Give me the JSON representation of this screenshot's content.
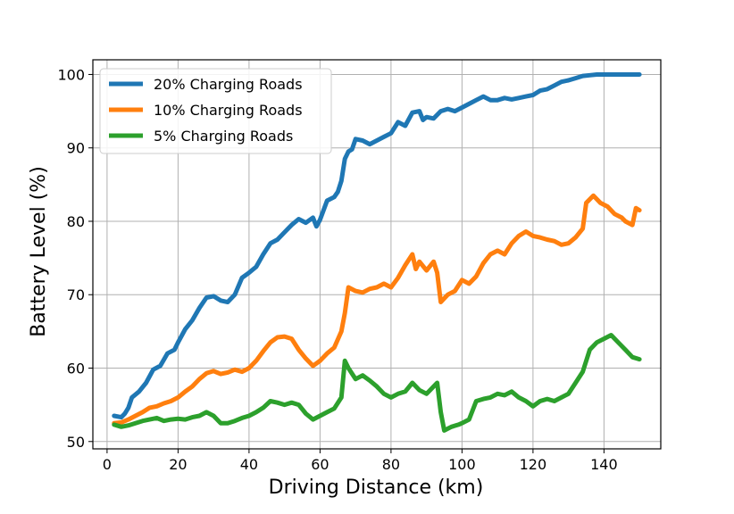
{
  "chart_data": {
    "type": "line",
    "title": "",
    "xlabel": "Driving Distance (km)",
    "ylabel": "Battery Level (%)",
    "xlim": [
      -4,
      156
    ],
    "ylim": [
      49,
      102
    ],
    "xticks": [
      0,
      20,
      40,
      60,
      80,
      100,
      120,
      140
    ],
    "yticks": [
      50,
      60,
      70,
      80,
      90,
      100
    ],
    "grid": true,
    "legend_position": "top-left",
    "series": [
      {
        "name": "20% Charging Roads",
        "color": "#1f77b4",
        "points": [
          [
            2,
            53.5
          ],
          [
            4,
            53.3
          ],
          [
            5,
            53.8
          ],
          [
            6,
            54.6
          ],
          [
            7,
            56.0
          ],
          [
            9,
            56.8
          ],
          [
            11,
            58.0
          ],
          [
            13,
            59.8
          ],
          [
            15,
            60.3
          ],
          [
            17,
            62.0
          ],
          [
            19,
            62.5
          ],
          [
            20,
            63.5
          ],
          [
            22,
            65.3
          ],
          [
            24,
            66.5
          ],
          [
            26,
            68.2
          ],
          [
            28,
            69.6
          ],
          [
            30,
            69.8
          ],
          [
            32,
            69.2
          ],
          [
            34,
            69.0
          ],
          [
            36,
            70.0
          ],
          [
            38,
            72.3
          ],
          [
            40,
            73.0
          ],
          [
            42,
            73.8
          ],
          [
            44,
            75.5
          ],
          [
            46,
            77.0
          ],
          [
            48,
            77.5
          ],
          [
            50,
            78.5
          ],
          [
            52,
            79.5
          ],
          [
            54,
            80.3
          ],
          [
            56,
            79.8
          ],
          [
            58,
            80.5
          ],
          [
            59,
            79.3
          ],
          [
            60,
            80.2
          ],
          [
            62,
            82.8
          ],
          [
            64,
            83.3
          ],
          [
            65,
            84.0
          ],
          [
            66,
            85.5
          ],
          [
            67,
            88.5
          ],
          [
            68,
            89.5
          ],
          [
            69,
            89.8
          ],
          [
            70,
            91.2
          ],
          [
            72,
            91.0
          ],
          [
            74,
            90.5
          ],
          [
            76,
            91.0
          ],
          [
            78,
            91.5
          ],
          [
            80,
            92.0
          ],
          [
            82,
            93.5
          ],
          [
            84,
            93.0
          ],
          [
            86,
            94.8
          ],
          [
            88,
            95.0
          ],
          [
            89,
            93.8
          ],
          [
            90,
            94.2
          ],
          [
            92,
            94.0
          ],
          [
            94,
            95.0
          ],
          [
            96,
            95.3
          ],
          [
            98,
            95.0
          ],
          [
            100,
            95.5
          ],
          [
            102,
            96.0
          ],
          [
            104,
            96.5
          ],
          [
            106,
            97.0
          ],
          [
            108,
            96.5
          ],
          [
            110,
            96.5
          ],
          [
            112,
            96.8
          ],
          [
            114,
            96.6
          ],
          [
            116,
            96.8
          ],
          [
            118,
            97.0
          ],
          [
            120,
            97.2
          ],
          [
            122,
            97.8
          ],
          [
            124,
            98.0
          ],
          [
            126,
            98.5
          ],
          [
            128,
            99.0
          ],
          [
            130,
            99.2
          ],
          [
            132,
            99.5
          ],
          [
            134,
            99.8
          ],
          [
            136,
            99.9
          ],
          [
            138,
            100.0
          ],
          [
            142,
            100.0
          ],
          [
            146,
            100.0
          ],
          [
            150,
            100.0
          ]
        ]
      },
      {
        "name": "10% Charging Roads",
        "color": "#ff7f0e",
        "points": [
          [
            2,
            52.5
          ],
          [
            4,
            52.6
          ],
          [
            6,
            53.0
          ],
          [
            8,
            53.5
          ],
          [
            10,
            54.0
          ],
          [
            12,
            54.6
          ],
          [
            14,
            54.8
          ],
          [
            16,
            55.2
          ],
          [
            18,
            55.5
          ],
          [
            20,
            56.0
          ],
          [
            22,
            56.8
          ],
          [
            24,
            57.5
          ],
          [
            26,
            58.5
          ],
          [
            28,
            59.3
          ],
          [
            30,
            59.6
          ],
          [
            32,
            59.2
          ],
          [
            34,
            59.4
          ],
          [
            36,
            59.8
          ],
          [
            38,
            59.5
          ],
          [
            40,
            60.0
          ],
          [
            42,
            61.0
          ],
          [
            44,
            62.3
          ],
          [
            46,
            63.5
          ],
          [
            48,
            64.2
          ],
          [
            50,
            64.3
          ],
          [
            52,
            64.0
          ],
          [
            54,
            62.5
          ],
          [
            56,
            61.3
          ],
          [
            58,
            60.3
          ],
          [
            60,
            61.0
          ],
          [
            62,
            62.0
          ],
          [
            64,
            62.8
          ],
          [
            66,
            65.0
          ],
          [
            67,
            67.5
          ],
          [
            68,
            71.0
          ],
          [
            70,
            70.5
          ],
          [
            72,
            70.3
          ],
          [
            74,
            70.8
          ],
          [
            76,
            71.0
          ],
          [
            78,
            71.5
          ],
          [
            80,
            71.0
          ],
          [
            82,
            72.3
          ],
          [
            84,
            74.0
          ],
          [
            86,
            75.5
          ],
          [
            87,
            73.5
          ],
          [
            88,
            74.5
          ],
          [
            90,
            73.3
          ],
          [
            92,
            74.5
          ],
          [
            93,
            73.0
          ],
          [
            94,
            69.0
          ],
          [
            96,
            70.0
          ],
          [
            98,
            70.5
          ],
          [
            100,
            72.0
          ],
          [
            102,
            71.5
          ],
          [
            104,
            72.5
          ],
          [
            106,
            74.3
          ],
          [
            108,
            75.5
          ],
          [
            110,
            76.0
          ],
          [
            112,
            75.5
          ],
          [
            114,
            77.0
          ],
          [
            116,
            78.0
          ],
          [
            118,
            78.6
          ],
          [
            120,
            78.0
          ],
          [
            122,
            77.8
          ],
          [
            124,
            77.5
          ],
          [
            126,
            77.3
          ],
          [
            128,
            76.8
          ],
          [
            130,
            77.0
          ],
          [
            132,
            77.8
          ],
          [
            134,
            79.0
          ],
          [
            135,
            82.5
          ],
          [
            137,
            83.5
          ],
          [
            139,
            82.5
          ],
          [
            141,
            82.0
          ],
          [
            143,
            81.0
          ],
          [
            145,
            80.5
          ],
          [
            146,
            80.0
          ],
          [
            148,
            79.5
          ],
          [
            149,
            81.8
          ],
          [
            150,
            81.5
          ]
        ]
      },
      {
        "name": "5% Charging Roads",
        "color": "#2ca02c",
        "points": [
          [
            2,
            52.3
          ],
          [
            4,
            52.0
          ],
          [
            6,
            52.2
          ],
          [
            8,
            52.5
          ],
          [
            10,
            52.8
          ],
          [
            12,
            53.0
          ],
          [
            14,
            53.2
          ],
          [
            16,
            52.8
          ],
          [
            18,
            53.0
          ],
          [
            20,
            53.1
          ],
          [
            22,
            53.0
          ],
          [
            24,
            53.3
          ],
          [
            26,
            53.5
          ],
          [
            28,
            54.0
          ],
          [
            30,
            53.5
          ],
          [
            32,
            52.5
          ],
          [
            34,
            52.5
          ],
          [
            36,
            52.8
          ],
          [
            38,
            53.2
          ],
          [
            40,
            53.5
          ],
          [
            42,
            54.0
          ],
          [
            44,
            54.6
          ],
          [
            46,
            55.5
          ],
          [
            48,
            55.3
          ],
          [
            50,
            55.0
          ],
          [
            52,
            55.3
          ],
          [
            54,
            55.0
          ],
          [
            56,
            53.8
          ],
          [
            58,
            53.0
          ],
          [
            60,
            53.5
          ],
          [
            62,
            54.0
          ],
          [
            64,
            54.5
          ],
          [
            66,
            56.0
          ],
          [
            67,
            61.0
          ],
          [
            68,
            60.0
          ],
          [
            70,
            58.5
          ],
          [
            72,
            59.0
          ],
          [
            74,
            58.3
          ],
          [
            76,
            57.5
          ],
          [
            78,
            56.5
          ],
          [
            80,
            56.0
          ],
          [
            82,
            56.5
          ],
          [
            84,
            56.8
          ],
          [
            86,
            58.0
          ],
          [
            88,
            57.0
          ],
          [
            90,
            56.5
          ],
          [
            92,
            57.5
          ],
          [
            93,
            58.0
          ],
          [
            94,
            54.0
          ],
          [
            95,
            51.5
          ],
          [
            97,
            52.0
          ],
          [
            99,
            52.3
          ],
          [
            100,
            52.5
          ],
          [
            102,
            53.0
          ],
          [
            104,
            55.5
          ],
          [
            106,
            55.8
          ],
          [
            108,
            56.0
          ],
          [
            110,
            56.5
          ],
          [
            112,
            56.3
          ],
          [
            114,
            56.8
          ],
          [
            116,
            56.0
          ],
          [
            118,
            55.5
          ],
          [
            120,
            54.8
          ],
          [
            122,
            55.5
          ],
          [
            124,
            55.8
          ],
          [
            126,
            55.5
          ],
          [
            128,
            56.0
          ],
          [
            130,
            56.5
          ],
          [
            132,
            58.0
          ],
          [
            134,
            59.5
          ],
          [
            136,
            62.5
          ],
          [
            138,
            63.5
          ],
          [
            140,
            64.0
          ],
          [
            142,
            64.5
          ],
          [
            144,
            63.5
          ],
          [
            146,
            62.5
          ],
          [
            148,
            61.5
          ],
          [
            150,
            61.2
          ]
        ]
      }
    ]
  }
}
